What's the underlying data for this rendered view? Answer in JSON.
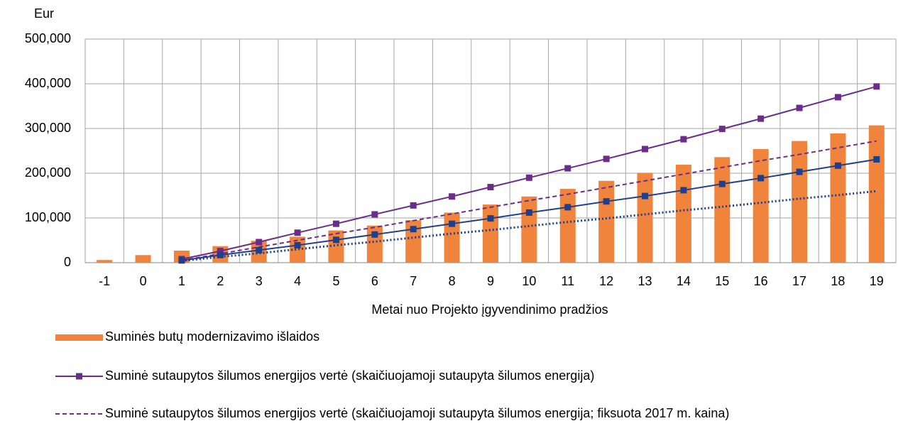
{
  "chart_data": {
    "type": "bar",
    "y_axis_label": "Eur",
    "x_axis_label": "Metai nuo Projekto įgyvendinimo pradžios",
    "categories": [
      "-1",
      "0",
      "1",
      "2",
      "3",
      "4",
      "5",
      "6",
      "7",
      "8",
      "9",
      "10",
      "11",
      "12",
      "13",
      "14",
      "15",
      "16",
      "17",
      "18",
      "19"
    ],
    "ylim": [
      0,
      500000
    ],
    "yticks": [
      0,
      {
        "value": 100000,
        "label": "100,000"
      },
      {
        "value": 200000,
        "label": "200,000"
      },
      {
        "value": 300000,
        "label": "300,000"
      },
      {
        "value": 400000,
        "label": "400,000"
      },
      {
        "value": 500000,
        "label": "500,000"
      }
    ],
    "grid": true,
    "series": [
      {
        "name": "Suminės butų modernizavimo išlaidos",
        "type": "bar",
        "color": "#f0843c",
        "values": [
          6000,
          17000,
          27000,
          37000,
          49000,
          58000,
          72000,
          83000,
          95000,
          112000,
          130000,
          148000,
          165000,
          183000,
          201000,
          219000,
          236000,
          254000,
          272000,
          289000,
          307000
        ]
      },
      {
        "name": "Suminė sutaupytos šilumos energijos vertė (skaičiuojamoji sutaupyta šilumos energija)",
        "type": "line",
        "color": "#6b2c8a",
        "line_style": "solid",
        "marker": "square",
        "values": [
          null,
          null,
          8000,
          26000,
          46000,
          67000,
          87000,
          108000,
          128000,
          148000,
          169000,
          190000,
          211000,
          232000,
          254000,
          276000,
          299000,
          322000,
          346000,
          370000,
          394000
        ]
      },
      {
        "name": "Suminė sutaupytos šilumos energijos vertė (skaičiuojamoji sutaupyta šilumos energija; fiksuota 2017 m. kaina)",
        "type": "line",
        "color": "#6b2c8a",
        "line_style": "dashed",
        "values": [
          null,
          null,
          5000,
          20000,
          35000,
          50000,
          65000,
          79000,
          94000,
          109000,
          124000,
          139000,
          153000,
          168000,
          183000,
          198000,
          213000,
          228000,
          242000,
          257000,
          272000
        ]
      },
      {
        "type": "line",
        "color": "#1f3f8c",
        "line_style": "solid",
        "marker": "square",
        "values": [
          null,
          null,
          5000,
          17000,
          28000,
          39000,
          51000,
          63000,
          75000,
          87000,
          99000,
          112000,
          124000,
          137000,
          149000,
          162000,
          176000,
          189000,
          203000,
          217000,
          231000
        ]
      },
      {
        "type": "line",
        "color": "#1f3f8c",
        "line_style": "dotted",
        "values": [
          null,
          null,
          4000,
          13000,
          21000,
          30000,
          39000,
          47000,
          56000,
          65000,
          73000,
          82000,
          91000,
          99000,
          108000,
          117000,
          125000,
          134000,
          143000,
          151000,
          160000
        ]
      }
    ]
  }
}
